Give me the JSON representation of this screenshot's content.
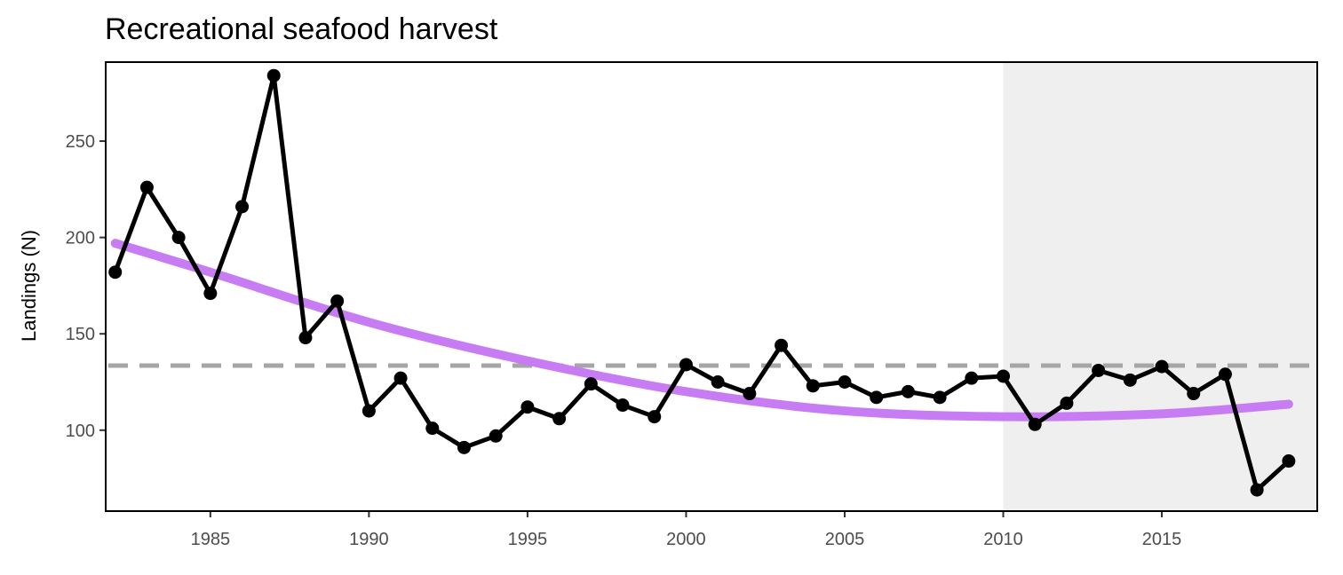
{
  "chart_data": {
    "type": "line",
    "title": "Recreational seafood harvest",
    "xlabel": "",
    "ylabel": "Landings (N)",
    "xlim": [
      1981.7,
      2019.9
    ],
    "ylim": [
      58,
      291
    ],
    "x_ticks": [
      1985,
      1990,
      1995,
      2000,
      2005,
      2010,
      2015
    ],
    "y_ticks": [
      100,
      150,
      200,
      250
    ],
    "grid": false,
    "legend": "none",
    "shaded_region": {
      "x_start": 2010,
      "x_end": 2019.9,
      "color": "#efefef"
    },
    "mean_line": {
      "value": 133.5,
      "color": "#a6a6a6",
      "style": "dashed"
    },
    "trend_line": {
      "color": "#c77cf3",
      "x": [
        1982,
        1985,
        1990,
        1995,
        2000,
        2005,
        2010,
        2015,
        2019
      ],
      "values": [
        197,
        182,
        156,
        136,
        120,
        110,
        107,
        108.5,
        113.5
      ]
    },
    "series": [
      {
        "color": "#000000",
        "x": [
          1982,
          1983,
          1984,
          1985,
          1986,
          1987,
          1988,
          1989,
          1990,
          1991,
          1992,
          1993,
          1994,
          1995,
          1996,
          1997,
          1998,
          1999,
          2000,
          2001,
          2002,
          2003,
          2004,
          2005,
          2006,
          2007,
          2008,
          2009,
          2010,
          2011,
          2012,
          2013,
          2014,
          2015,
          2016,
          2017,
          2018,
          2019
        ],
        "values": [
          182,
          226,
          200,
          171,
          216,
          284,
          148,
          167,
          110,
          127,
          101,
          91,
          97,
          112,
          106,
          124,
          113,
          107,
          134,
          125,
          119,
          144,
          123,
          125,
          117,
          120,
          117,
          127,
          128,
          103,
          114,
          131,
          126,
          133,
          119,
          129,
          69,
          84
        ]
      }
    ]
  }
}
